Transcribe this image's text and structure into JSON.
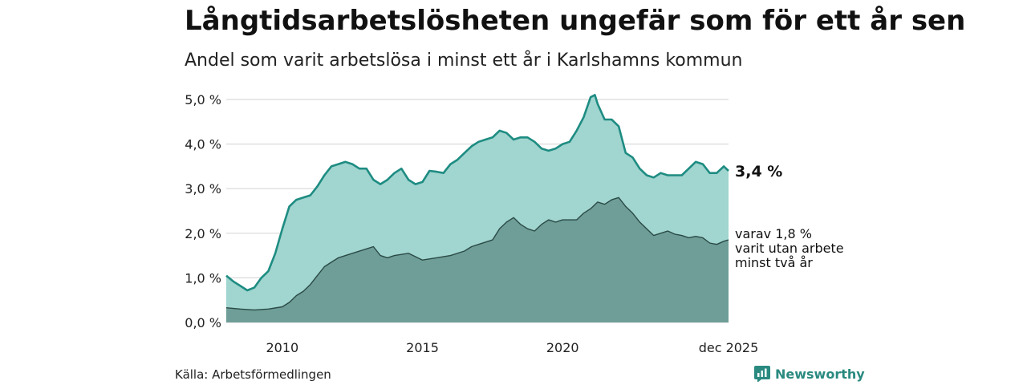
{
  "title": "Långtidsarbetslösheten ungefär som för ett år sen",
  "subtitle": "Andel som varit arbetslösa i minst ett år i Karlshamns kommun",
  "source": "Källa: Arbetsförmedlingen",
  "brand": "Newsworthy",
  "colors": {
    "total_fill": "#a1d5cf",
    "total_line": "#1e8c82",
    "long_fill": "#6f9e98",
    "long_line": "#2a4a46",
    "grid": "#d9d9d9"
  },
  "chart_data": {
    "type": "area",
    "title": "Långtidsarbetslösheten ungefär som för ett år sen",
    "subtitle": "Andel som varit arbetslösa i minst ett år i Karlshamns kommun",
    "x_range": [
      2008.0,
      2025.92
    ],
    "ylim": [
      0,
      5
    ],
    "yticks": [
      {
        "value": 0,
        "label": "0,0 %"
      },
      {
        "value": 1,
        "label": "1,0 %"
      },
      {
        "value": 2,
        "label": "2,0 %"
      },
      {
        "value": 3,
        "label": "3,0 %"
      },
      {
        "value": 4,
        "label": "4,0 %"
      },
      {
        "value": 5,
        "label": "5,0 %"
      }
    ],
    "xticks": [
      {
        "value": 2010,
        "label": "2010"
      },
      {
        "value": 2015,
        "label": "2015"
      },
      {
        "value": 2020,
        "label": "2020"
      },
      {
        "value": 2025.92,
        "label": "dec 2025"
      }
    ],
    "series": [
      {
        "name": "Arbetslösa minst ett år",
        "end_label": "3,4 %",
        "points": [
          [
            2008.0,
            1.05
          ],
          [
            2008.25,
            0.92
          ],
          [
            2008.5,
            0.82
          ],
          [
            2008.75,
            0.72
          ],
          [
            2009.0,
            0.78
          ],
          [
            2009.25,
            1.0
          ],
          [
            2009.5,
            1.15
          ],
          [
            2009.75,
            1.55
          ],
          [
            2010.0,
            2.1
          ],
          [
            2010.25,
            2.6
          ],
          [
            2010.5,
            2.75
          ],
          [
            2010.75,
            2.8
          ],
          [
            2011.0,
            2.85
          ],
          [
            2011.25,
            3.05
          ],
          [
            2011.5,
            3.3
          ],
          [
            2011.75,
            3.5
          ],
          [
            2012.0,
            3.55
          ],
          [
            2012.25,
            3.6
          ],
          [
            2012.5,
            3.55
          ],
          [
            2012.75,
            3.45
          ],
          [
            2013.0,
            3.45
          ],
          [
            2013.25,
            3.2
          ],
          [
            2013.5,
            3.1
          ],
          [
            2013.75,
            3.2
          ],
          [
            2014.0,
            3.35
          ],
          [
            2014.25,
            3.45
          ],
          [
            2014.5,
            3.2
          ],
          [
            2014.75,
            3.1
          ],
          [
            2015.0,
            3.15
          ],
          [
            2015.25,
            3.4
          ],
          [
            2015.5,
            3.38
          ],
          [
            2015.75,
            3.35
          ],
          [
            2016.0,
            3.55
          ],
          [
            2016.25,
            3.65
          ],
          [
            2016.5,
            3.8
          ],
          [
            2016.75,
            3.95
          ],
          [
            2017.0,
            4.05
          ],
          [
            2017.25,
            4.1
          ],
          [
            2017.5,
            4.15
          ],
          [
            2017.75,
            4.3
          ],
          [
            2018.0,
            4.25
          ],
          [
            2018.25,
            4.1
          ],
          [
            2018.5,
            4.15
          ],
          [
            2018.75,
            4.15
          ],
          [
            2019.0,
            4.05
          ],
          [
            2019.25,
            3.9
          ],
          [
            2019.5,
            3.85
          ],
          [
            2019.75,
            3.9
          ],
          [
            2020.0,
            4.0
          ],
          [
            2020.25,
            4.05
          ],
          [
            2020.5,
            4.3
          ],
          [
            2020.75,
            4.6
          ],
          [
            2021.0,
            5.05
          ],
          [
            2021.15,
            5.1
          ],
          [
            2021.25,
            4.9
          ],
          [
            2021.5,
            4.55
          ],
          [
            2021.75,
            4.55
          ],
          [
            2022.0,
            4.4
          ],
          [
            2022.25,
            3.8
          ],
          [
            2022.5,
            3.7
          ],
          [
            2022.75,
            3.45
          ],
          [
            2023.0,
            3.3
          ],
          [
            2023.25,
            3.25
          ],
          [
            2023.5,
            3.35
          ],
          [
            2023.75,
            3.3
          ],
          [
            2024.0,
            3.3
          ],
          [
            2024.25,
            3.3
          ],
          [
            2024.5,
            3.45
          ],
          [
            2024.75,
            3.6
          ],
          [
            2025.0,
            3.55
          ],
          [
            2025.25,
            3.35
          ],
          [
            2025.5,
            3.35
          ],
          [
            2025.75,
            3.5
          ],
          [
            2025.92,
            3.4
          ]
        ]
      },
      {
        "name": "varav arbetslösa minst två år",
        "end_label": [
          "varav 1,8 %",
          "varit utan arbete",
          "minst två år"
        ],
        "points": [
          [
            2008.0,
            0.33
          ],
          [
            2008.5,
            0.3
          ],
          [
            2009.0,
            0.28
          ],
          [
            2009.5,
            0.3
          ],
          [
            2010.0,
            0.35
          ],
          [
            2010.25,
            0.45
          ],
          [
            2010.5,
            0.6
          ],
          [
            2010.75,
            0.7
          ],
          [
            2011.0,
            0.85
          ],
          [
            2011.25,
            1.05
          ],
          [
            2011.5,
            1.25
          ],
          [
            2011.75,
            1.35
          ],
          [
            2012.0,
            1.45
          ],
          [
            2012.5,
            1.55
          ],
          [
            2013.0,
            1.65
          ],
          [
            2013.25,
            1.7
          ],
          [
            2013.5,
            1.5
          ],
          [
            2013.75,
            1.45
          ],
          [
            2014.0,
            1.5
          ],
          [
            2014.5,
            1.55
          ],
          [
            2015.0,
            1.4
          ],
          [
            2015.5,
            1.45
          ],
          [
            2016.0,
            1.5
          ],
          [
            2016.5,
            1.6
          ],
          [
            2016.75,
            1.7
          ],
          [
            2017.0,
            1.75
          ],
          [
            2017.5,
            1.85
          ],
          [
            2017.75,
            2.1
          ],
          [
            2018.0,
            2.25
          ],
          [
            2018.25,
            2.35
          ],
          [
            2018.5,
            2.2
          ],
          [
            2018.75,
            2.1
          ],
          [
            2019.0,
            2.05
          ],
          [
            2019.25,
            2.2
          ],
          [
            2019.5,
            2.3
          ],
          [
            2019.75,
            2.25
          ],
          [
            2020.0,
            2.3
          ],
          [
            2020.5,
            2.3
          ],
          [
            2020.75,
            2.45
          ],
          [
            2021.0,
            2.55
          ],
          [
            2021.25,
            2.7
          ],
          [
            2021.5,
            2.65
          ],
          [
            2021.75,
            2.75
          ],
          [
            2022.0,
            2.8
          ],
          [
            2022.25,
            2.6
          ],
          [
            2022.5,
            2.45
          ],
          [
            2022.75,
            2.25
          ],
          [
            2023.0,
            2.1
          ],
          [
            2023.25,
            1.95
          ],
          [
            2023.5,
            2.0
          ],
          [
            2023.75,
            2.05
          ],
          [
            2024.0,
            1.98
          ],
          [
            2024.25,
            1.95
          ],
          [
            2024.5,
            1.9
          ],
          [
            2024.75,
            1.93
          ],
          [
            2025.0,
            1.9
          ],
          [
            2025.25,
            1.78
          ],
          [
            2025.5,
            1.75
          ],
          [
            2025.75,
            1.82
          ],
          [
            2025.92,
            1.85
          ]
        ]
      }
    ]
  }
}
